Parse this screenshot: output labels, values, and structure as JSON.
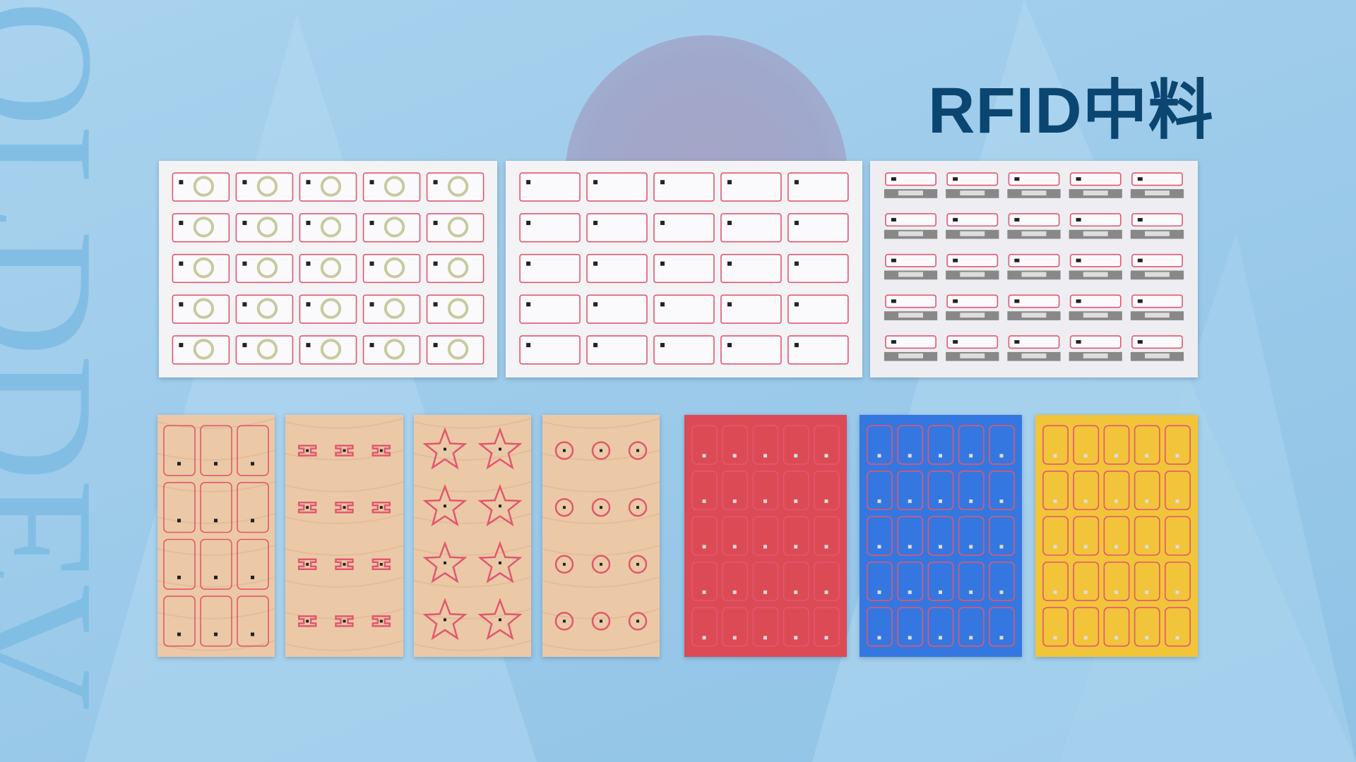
{
  "title": "RFID中料",
  "watermark": "OLDDEV",
  "colors": {
    "title": "#0b4671",
    "background": "#9dcbea",
    "antenna": "#e2576f"
  },
  "top_sheets": [
    {
      "kind": "round-coil",
      "rows": 5,
      "cols": 5
    },
    {
      "kind": "rect-coil",
      "rows": 5,
      "cols": 5
    },
    {
      "kind": "uhf-inlay",
      "rows": 5,
      "cols": 5
    }
  ],
  "bottom_sheets": [
    {
      "kind": "card-coil",
      "rows": 4,
      "cols": 3,
      "fill": "#ecc9a6"
    },
    {
      "kind": "small-tag",
      "rows": 4,
      "cols": 3,
      "fill": "#ecc9a6"
    },
    {
      "kind": "star-coil",
      "rows": 4,
      "cols": 2,
      "fill": "#ecc9a6"
    },
    {
      "kind": "circle-coil",
      "rows": 4,
      "cols": 3,
      "fill": "#ecc9a6"
    },
    {
      "kind": "card-coil",
      "rows": 5,
      "cols": 5,
      "fill": "#dc4a55"
    },
    {
      "kind": "card-coil",
      "rows": 5,
      "cols": 5,
      "fill": "#3477e0"
    },
    {
      "kind": "card-coil",
      "rows": 5,
      "cols": 5,
      "fill": "#f2c43a"
    }
  ]
}
